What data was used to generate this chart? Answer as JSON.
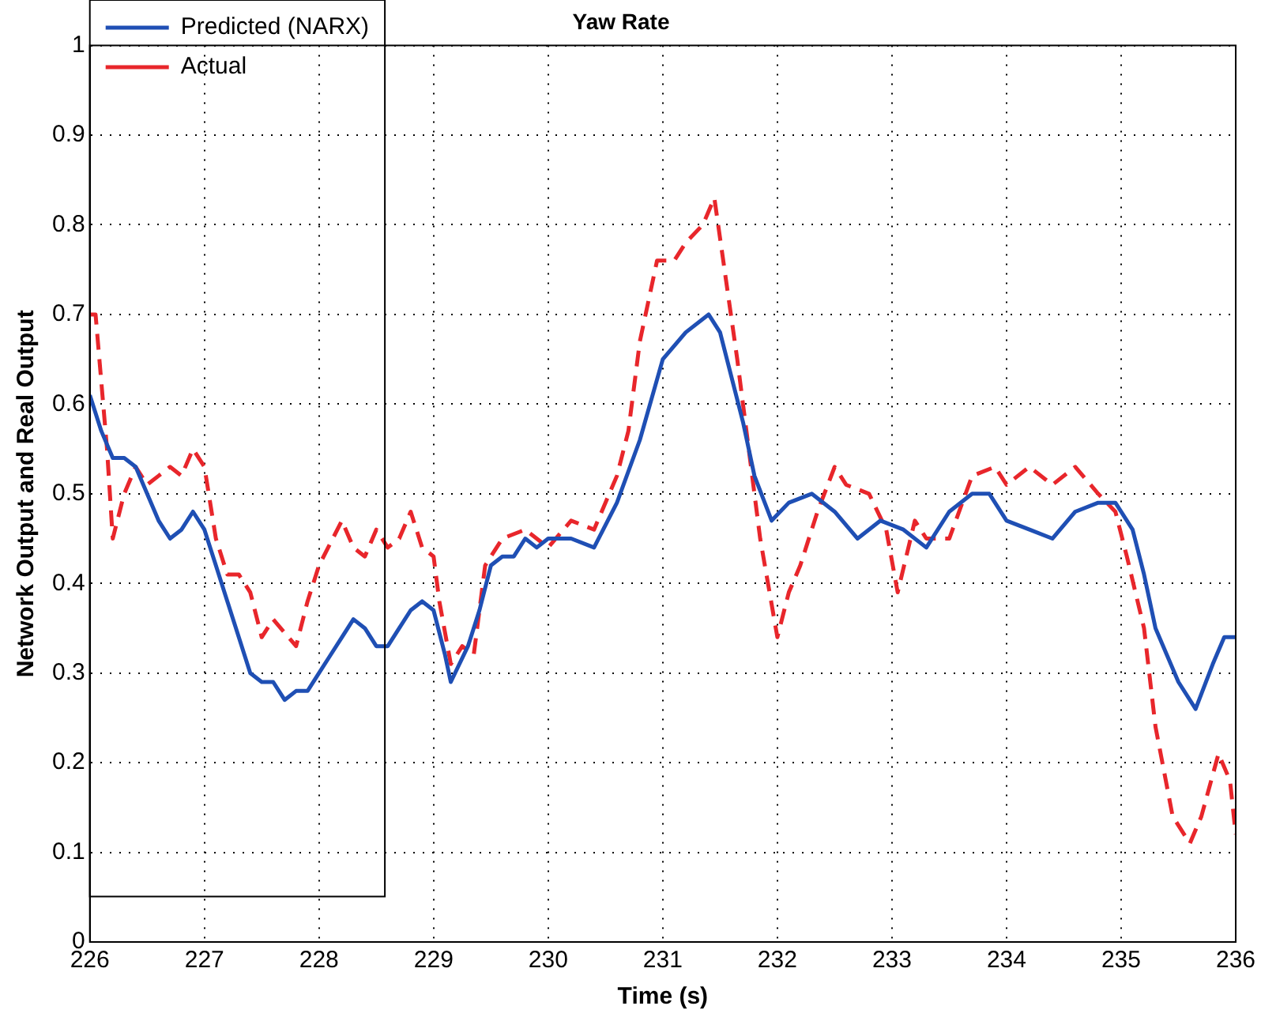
{
  "chart_data": {
    "type": "line",
    "title": "Yaw Rate",
    "xlabel": "Time (s)",
    "ylabel": "Network Output and Real Output",
    "xlim": [
      226,
      236
    ],
    "xticks": [
      226,
      227,
      228,
      229,
      230,
      231,
      232,
      233,
      234,
      235,
      236
    ],
    "ylim": [
      0,
      1
    ],
    "yticks": [
      0,
      0.1,
      0.2,
      0.3,
      0.4,
      0.5,
      0.6,
      0.7,
      0.8,
      0.9,
      1
    ],
    "grid": true,
    "legend": "top left",
    "marker": "none",
    "series": [
      {
        "name": "Predicted (NARX)",
        "color": "#1f4fb4",
        "line_style": "solid",
        "x": [
          226.0,
          226.1,
          226.2,
          226.3,
          226.4,
          226.5,
          226.6,
          226.7,
          226.8,
          226.9,
          227.0,
          227.1,
          227.2,
          227.3,
          227.4,
          227.5,
          227.6,
          227.7,
          227.8,
          227.9,
          228.0,
          228.1,
          228.2,
          228.3,
          228.4,
          228.5,
          228.6,
          228.7,
          228.8,
          228.9,
          229.0,
          229.1,
          229.15,
          229.3,
          229.4,
          229.5,
          229.6,
          229.7,
          229.8,
          229.9,
          230.0,
          230.2,
          230.4,
          230.6,
          230.8,
          231.0,
          231.2,
          231.4,
          231.5,
          231.6,
          231.7,
          231.8,
          231.95,
          232.1,
          232.3,
          232.5,
          232.7,
          232.9,
          233.1,
          233.3,
          233.5,
          233.7,
          233.85,
          234.0,
          234.2,
          234.4,
          234.6,
          234.8,
          234.95,
          235.1,
          235.2,
          235.3,
          235.5,
          235.65,
          235.8,
          235.9,
          236.0
        ],
        "values": [
          0.61,
          0.57,
          0.54,
          0.54,
          0.53,
          0.5,
          0.47,
          0.45,
          0.46,
          0.48,
          0.46,
          0.42,
          0.38,
          0.34,
          0.3,
          0.29,
          0.29,
          0.27,
          0.28,
          0.28,
          0.3,
          0.32,
          0.34,
          0.36,
          0.35,
          0.33,
          0.33,
          0.35,
          0.37,
          0.38,
          0.37,
          0.32,
          0.29,
          0.33,
          0.37,
          0.42,
          0.43,
          0.43,
          0.45,
          0.44,
          0.45,
          0.45,
          0.44,
          0.49,
          0.56,
          0.65,
          0.68,
          0.7,
          0.68,
          0.63,
          0.58,
          0.52,
          0.47,
          0.49,
          0.5,
          0.48,
          0.45,
          0.47,
          0.46,
          0.44,
          0.48,
          0.5,
          0.5,
          0.47,
          0.46,
          0.45,
          0.48,
          0.49,
          0.49,
          0.46,
          0.41,
          0.35,
          0.29,
          0.26,
          0.31,
          0.34,
          0.34
        ]
      },
      {
        "name": "Actual",
        "color": "#e8262b",
        "line_style": "dashed",
        "x": [
          226.0,
          226.05,
          226.15,
          226.2,
          226.3,
          226.4,
          226.5,
          226.6,
          226.7,
          226.8,
          226.9,
          227.0,
          227.1,
          227.2,
          227.3,
          227.4,
          227.5,
          227.6,
          227.8,
          227.9,
          228.0,
          228.2,
          228.3,
          228.4,
          228.5,
          228.6,
          228.7,
          228.8,
          228.9,
          229.0,
          229.05,
          229.15,
          229.25,
          229.35,
          229.45,
          229.6,
          229.8,
          230.0,
          230.2,
          230.4,
          230.6,
          230.7,
          230.8,
          230.95,
          231.1,
          231.2,
          231.35,
          231.45,
          231.55,
          231.65,
          231.75,
          231.85,
          232.0,
          232.1,
          232.2,
          232.35,
          232.5,
          232.6,
          232.8,
          232.95,
          233.05,
          233.2,
          233.3,
          233.5,
          233.7,
          233.9,
          234.0,
          234.2,
          234.4,
          234.6,
          234.8,
          234.95,
          235.05,
          235.2,
          235.3,
          235.45,
          235.6,
          235.7,
          235.85,
          235.95,
          236.0
        ],
        "values": [
          0.7,
          0.7,
          0.55,
          0.45,
          0.5,
          0.53,
          0.51,
          0.52,
          0.53,
          0.52,
          0.55,
          0.53,
          0.45,
          0.41,
          0.41,
          0.39,
          0.34,
          0.36,
          0.33,
          0.38,
          0.42,
          0.47,
          0.44,
          0.43,
          0.46,
          0.44,
          0.45,
          0.48,
          0.44,
          0.43,
          0.38,
          0.31,
          0.33,
          0.32,
          0.42,
          0.45,
          0.46,
          0.44,
          0.47,
          0.46,
          0.52,
          0.57,
          0.67,
          0.76,
          0.76,
          0.78,
          0.8,
          0.83,
          0.74,
          0.65,
          0.55,
          0.45,
          0.34,
          0.39,
          0.42,
          0.48,
          0.53,
          0.51,
          0.5,
          0.46,
          0.39,
          0.47,
          0.45,
          0.45,
          0.52,
          0.53,
          0.51,
          0.53,
          0.51,
          0.53,
          0.5,
          0.48,
          0.43,
          0.35,
          0.24,
          0.14,
          0.11,
          0.14,
          0.21,
          0.18,
          0.12
        ]
      }
    ]
  }
}
